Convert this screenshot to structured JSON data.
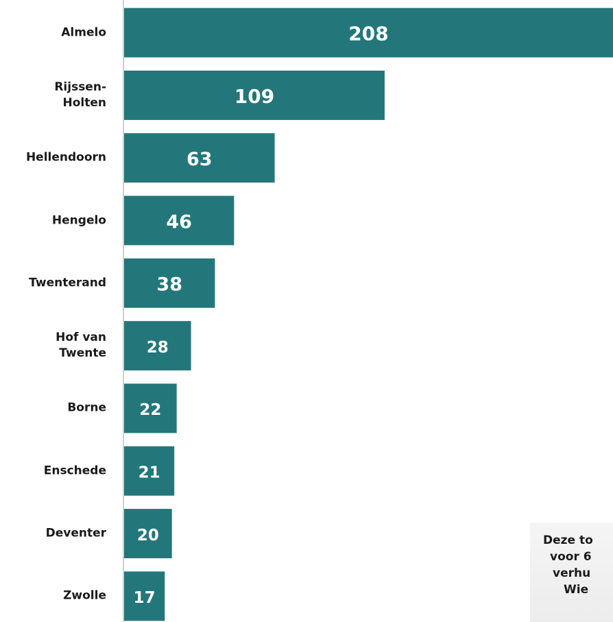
{
  "chart_data": {
    "type": "barh",
    "categories": [
      "Almelo",
      "Rijssen-\nHolten",
      "Hellendoorn",
      "Hengelo",
      "Twenterand",
      "Hof van\nTwente",
      "Borne",
      "Enschede",
      "Deventer",
      "Zwolle"
    ],
    "values": [
      208,
      109,
      63,
      46,
      38,
      28,
      22,
      21,
      20,
      17
    ],
    "color": "#23777a",
    "annotation": [
      "Deze to",
      "voor 6",
      "verhu",
      "Wie"
    ]
  }
}
